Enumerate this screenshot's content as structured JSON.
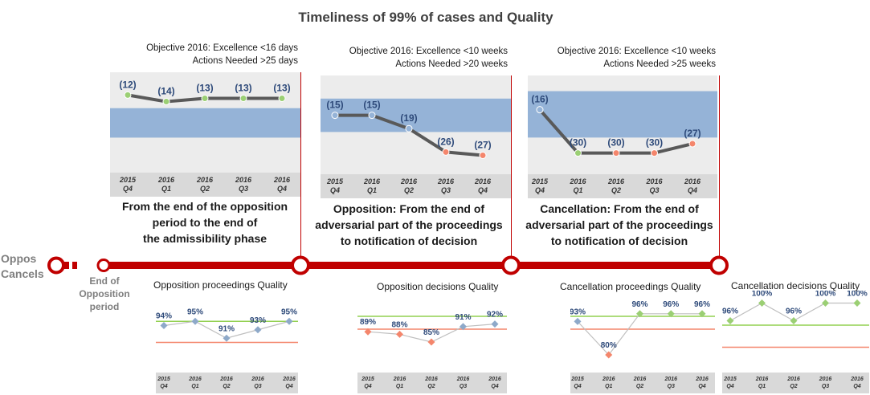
{
  "title": "Timeliness of 99% of cases and Quality",
  "side_labels": [
    "Oppos",
    "Cancels"
  ],
  "end_label": [
    "End of",
    "Opposition",
    "period"
  ],
  "colors": {
    "band": "#95b3d7",
    "timeline": "#c00000",
    "line": "#595959",
    "point_green": "#9bcf74",
    "point_blue": "#95b3d7",
    "point_red": "#f4866c",
    "excellence": "#92d050",
    "actions": "#f4866c",
    "quality_line": "#bfbfbf",
    "quality_point": "#8ea9c9"
  },
  "chart_data": [
    {
      "type": "line",
      "title": "",
      "objective": [
        "Objective 2016: Excellence <16 days",
        "Actions Needed >25 days"
      ],
      "description": [
        "From the end of the opposition",
        "period to the end of",
        "the admissibility phase"
      ],
      "categories": [
        [
          "2015",
          "Q4"
        ],
        [
          "2016",
          "Q1"
        ],
        [
          "2016",
          "Q2"
        ],
        [
          "2016",
          "Q3"
        ],
        [
          "2016",
          "Q4"
        ]
      ],
      "values": [
        12,
        14,
        13,
        13,
        13
      ],
      "labels": [
        "(12)",
        "(14)",
        "(13)",
        "(13)",
        "(13)"
      ],
      "point_colors": [
        "green",
        "green",
        "green",
        "green",
        "green"
      ],
      "band": [
        16,
        25
      ],
      "ylim": [
        7,
        32
      ]
    },
    {
      "type": "line",
      "title": "",
      "objective": [
        "Objective 2016: Excellence <10 weeks",
        "Actions Needed >20 weeks"
      ],
      "description": [
        "Opposition: From the end of",
        "adversarial part of the proceedings",
        "to notification of decision"
      ],
      "categories": [
        [
          "2015",
          "Q4"
        ],
        [
          "2016",
          "Q1"
        ],
        [
          "2016",
          "Q2"
        ],
        [
          "2016",
          "Q3"
        ],
        [
          "2016",
          "Q4"
        ]
      ],
      "values": [
        15,
        15,
        19,
        26,
        27
      ],
      "labels": [
        "(15)",
        "(15)",
        "(19)",
        "(26)",
        "(27)"
      ],
      "point_colors": [
        "blue",
        "blue",
        "blue",
        "red",
        "red"
      ],
      "band": [
        10,
        20
      ],
      "ylim": [
        5,
        30
      ]
    },
    {
      "type": "line",
      "title": "",
      "objective": [
        "Objective 2016: Excellence <10 weeks",
        "Actions Needed >25 weeks"
      ],
      "description": [
        "Cancellation: From the end of",
        "adversarial part of the proceedings",
        "to notification of decision"
      ],
      "categories": [
        [
          "2015",
          "Q4"
        ],
        [
          "2016",
          "Q1"
        ],
        [
          "2016",
          "Q2"
        ],
        [
          "2016",
          "Q3"
        ],
        [
          "2016",
          "Q4"
        ]
      ],
      "values": [
        16,
        30,
        30,
        30,
        27
      ],
      "labels": [
        "(16)",
        "(30)",
        "(30)",
        "(30)",
        "(27)"
      ],
      "point_colors": [
        "blue",
        "green",
        "red",
        "red",
        "red"
      ],
      "band": [
        10,
        25
      ],
      "ylim": [
        7,
        34
      ]
    },
    {
      "type": "line",
      "title": "Opposition proceedings Quality",
      "categories": [
        [
          "2015",
          "Q4"
        ],
        [
          "2016",
          "Q1"
        ],
        [
          "2016",
          "Q2"
        ],
        [
          "2016",
          "Q3"
        ],
        [
          "2016",
          "Q4"
        ]
      ],
      "values": [
        94,
        95,
        91,
        93,
        95
      ],
      "labels": [
        "94%",
        "95%",
        "91%",
        "93%",
        "95%"
      ],
      "point_colors": [
        "blue",
        "blue",
        "blue",
        "blue",
        "blue"
      ],
      "excellence": 95,
      "actions": 90,
      "ylim": [
        84,
        100
      ]
    },
    {
      "type": "line",
      "title": "Opposition decisions Quality",
      "categories": [
        [
          "2015",
          "Q4"
        ],
        [
          "2016",
          "Q1"
        ],
        [
          "2016",
          "Q2"
        ],
        [
          "2016",
          "Q3"
        ],
        [
          "2016",
          "Q4"
        ]
      ],
      "values": [
        89,
        88,
        85,
        91,
        92
      ],
      "labels": [
        "89%",
        "88%",
        "85%",
        "91%",
        "92%"
      ],
      "point_colors": [
        "red",
        "red",
        "red",
        "blue",
        "blue"
      ],
      "excellence": 95,
      "actions": 90,
      "ylim": [
        75,
        100
      ]
    },
    {
      "type": "line",
      "title": "Cancellation proceedings Quality",
      "categories": [
        [
          "2015",
          "Q4"
        ],
        [
          "2016",
          "Q1"
        ],
        [
          "2016",
          "Q2"
        ],
        [
          "2016",
          "Q3"
        ],
        [
          "2016",
          "Q4"
        ]
      ],
      "values": [
        93,
        80,
        96,
        96,
        96
      ],
      "labels": [
        "93%",
        "80%",
        "96%",
        "96%",
        "96%"
      ],
      "point_colors": [
        "blue",
        "red",
        "green",
        "green",
        "green"
      ],
      "excellence": 95,
      "actions": 90,
      "ylim": [
        75,
        100
      ]
    },
    {
      "type": "line",
      "title": "Cancellation decisions Quality",
      "categories": [
        [
          "2015",
          "Q4"
        ],
        [
          "2016",
          "Q1"
        ],
        [
          "2016",
          "Q2"
        ],
        [
          "2016",
          "Q3"
        ],
        [
          "2016",
          "Q4"
        ]
      ],
      "values": [
        96,
        100,
        96,
        100,
        100
      ],
      "labels": [
        "96%",
        "100%",
        "96%",
        "100%",
        "100%"
      ],
      "point_colors": [
        "green",
        "green",
        "green",
        "green",
        "green"
      ],
      "excellence": 95,
      "actions": 90,
      "ylim": [
        85,
        101
      ]
    }
  ]
}
